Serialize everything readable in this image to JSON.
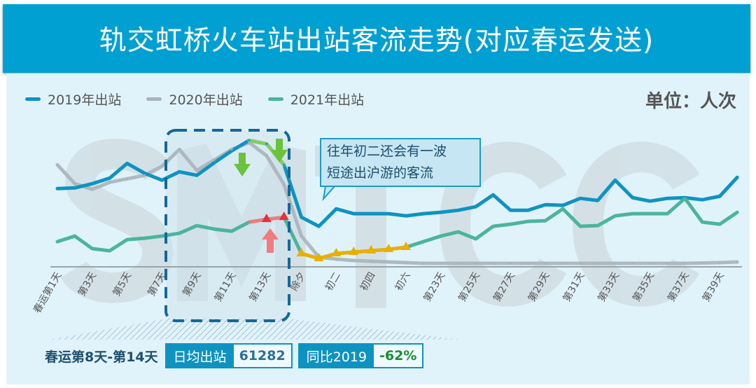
{
  "header": {
    "title": "轨交虹桥火车站出站客流走势(对应春运发送)"
  },
  "unit": "单位：人次",
  "watermark": "SMTCC",
  "annotation": "往年初二还会有一波|短途出沪游的客流",
  "annotation_lines": [
    "往年初二还会有一波",
    "短途出沪游的客流"
  ],
  "summary": {
    "period": "春运第8天-第14天",
    "avg_label": "日均出站",
    "avg_value": "61282",
    "yoy_label": "同比2019",
    "yoy_value": "-62%"
  },
  "colors": {
    "y2019": "#0f93c2",
    "y2020": "#a9b4ba",
    "y2021": "#4bb59c",
    "highlight_down": "#86cc62",
    "highlight_up": "#f07b80",
    "holiday": "#e8b000",
    "yoy": "#1a8f2e",
    "avg": "#2b6f98"
  },
  "chart_data": {
    "type": "line",
    "title": "轨交虹桥火车站出站客流走势(对应春运发送)",
    "xlabel": "",
    "ylabel": "人次",
    "ylim": [
      0,
      200000
    ],
    "grid": false,
    "legend": "top-left",
    "tick_labels": [
      "春运第1天",
      "第3天",
      "第5天",
      "第7天",
      "第9天",
      "第11天",
      "第13天",
      "除夕",
      "初二",
      "初四",
      "初六",
      "第23天",
      "第25天",
      "第27天",
      "第29天",
      "第31天",
      "第33天",
      "第35天",
      "第37天",
      "第39天"
    ],
    "tick_days": [
      1,
      3,
      5,
      7,
      9,
      11,
      13,
      15,
      17,
      19,
      21,
      23,
      25,
      27,
      29,
      31,
      33,
      35,
      37,
      39
    ],
    "x": [
      1,
      2,
      3,
      4,
      5,
      6,
      7,
      8,
      9,
      10,
      11,
      12,
      13,
      14,
      15,
      16,
      17,
      18,
      19,
      20,
      21,
      22,
      23,
      24,
      25,
      26,
      27,
      28,
      29,
      30,
      31,
      32,
      33,
      34,
      35,
      36,
      37,
      38,
      39,
      40
    ],
    "series": [
      {
        "name": "2019年出站",
        "key": "y2019",
        "values": [
          116600,
          117600,
          123900,
          132300,
          154400,
          139700,
          129200,
          141800,
          136500,
          155400,
          173300,
          189000,
          183800,
          152300,
          73500,
          59900,
          86100,
          78800,
          78800,
          78800,
          75600,
          78800,
          80900,
          84000,
          89300,
          107100,
          84000,
          84000,
          92400,
          91400,
          101900,
          98700,
          129200,
          102900,
          97700,
          101900,
          102900,
          99800,
          105000,
          133400
        ]
      },
      {
        "name": "2020年出站",
        "key": "y2020",
        "values": [
          152300,
          123900,
          115500,
          126000,
          131300,
          136500,
          150200,
          175400,
          143900,
          159600,
          175400,
          185900,
          165900,
          122900,
          45200,
          13700,
          10500,
          8400,
          7400,
          6300,
          5300,
          4200,
          4200,
          4200,
          4200,
          4200,
          4200,
          4200,
          4200,
          4200,
          4200,
          4200,
          4200,
          4200,
          4200,
          4200,
          4200,
          4700,
          5300,
          6300
        ]
      },
      {
        "name": "2021年出站",
        "key": "y2021",
        "values": [
          36800,
          45200,
          26300,
          23100,
          39900,
          42000,
          45200,
          49400,
          60900,
          55700,
          52500,
          66200,
          70400,
          73500,
          18900,
          11600,
          18900,
          21000,
          23100,
          25200,
          28400,
          36800,
          45200,
          51500,
          41000,
          59900,
          63000,
          67200,
          68300,
          86100,
          59900,
          60900,
          75600,
          78800,
          78800,
          78800,
          101900,
          66200,
          63000,
          80900
        ]
      }
    ],
    "highlight_range_days": [
      8,
      14
    ]
  }
}
